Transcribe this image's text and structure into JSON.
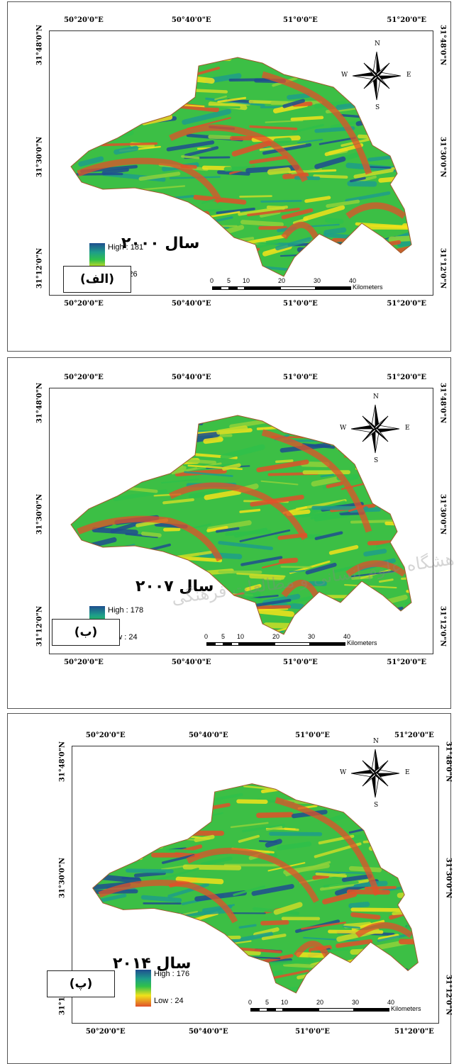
{
  "colors": {
    "high": "#1f4e8f",
    "mid_high": "#1e9e8a",
    "mid": "#2fc04a",
    "mid_low": "#f2e21a",
    "low": "#e0502a"
  },
  "coords": {
    "lon": [
      "50°20'0\"E",
      "50°40'0\"E",
      "51°0'0\"E",
      "51°20'0\"E"
    ],
    "lat": [
      "31°48'0\"N",
      "31°30'0\"N",
      "31°12'0\"N"
    ]
  },
  "compass": {
    "n": "N",
    "s": "S",
    "e": "E",
    "w": "W"
  },
  "scale": {
    "ticks": [
      "0",
      "5",
      "10",
      "20",
      "30",
      "40"
    ],
    "unit": "Kilometers"
  },
  "panels": [
    {
      "year": "سال ۲۰۰۰",
      "high": "High : 181",
      "low": "Low : 26",
      "letter": "(الف)"
    },
    {
      "year": "سال ۲۰۰۷",
      "high": "High : 178",
      "low": "Low : 24",
      "letter": "(ب)"
    },
    {
      "year": "سال ۲۰۱۴",
      "high": "High : 176",
      "low": "Low : 24",
      "letter": "(پ)"
    }
  ],
  "watermark": {
    "text": "پژوهشگاه علوم انسانی و مطالعات فرهنگی"
  }
}
